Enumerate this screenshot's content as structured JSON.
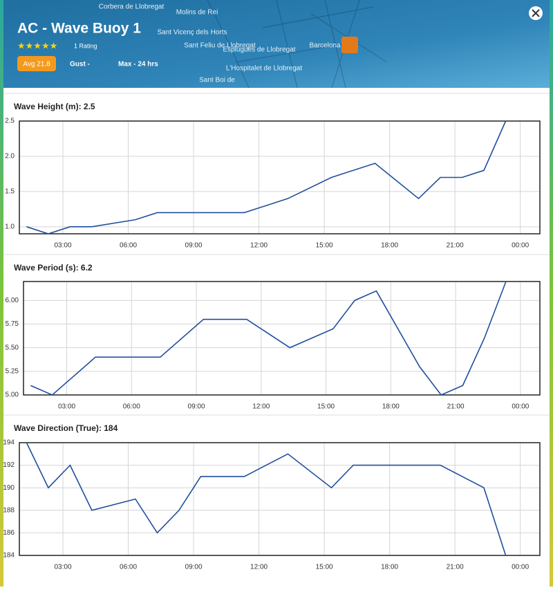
{
  "header": {
    "title": "AC - Wave Buoy 1",
    "rating": "1 Rating",
    "avg": "Avg 21.8",
    "gust": "Gust -",
    "max": "Max -  24 hrs",
    "map_labels": [
      "Corbera de Llobregat",
      "Molins de Rei",
      "Sant Vicenç dels Horts",
      "Sant Feliu de Llobregat",
      "Esplugues de Llobregat",
      "L'Hospitalet de Llobregat",
      "Sant Boi de",
      "Barcelona"
    ]
  },
  "chart_data": [
    {
      "type": "line",
      "title": "Wave Height (m): 2.5",
      "color": "#1f4e9c",
      "grid": true,
      "x": [
        1.33,
        2.33,
        3.33,
        4.33,
        6.33,
        7.33,
        11.33,
        13.33,
        15.33,
        17.33,
        19.33,
        20.33,
        21.33,
        22.33,
        23.33
      ],
      "values": [
        1.0,
        0.9,
        1.0,
        1.0,
        1.1,
        1.2,
        1.2,
        1.4,
        1.7,
        1.9,
        1.4,
        1.7,
        1.7,
        1.8,
        2.5
      ],
      "xlim": [
        1,
        24.9
      ],
      "ylim": [
        0.9,
        2.5
      ],
      "xticks": [
        {
          "value": 3,
          "label": "03:00"
        },
        {
          "value": 6,
          "label": "06:00"
        },
        {
          "value": 9,
          "label": "09:00"
        },
        {
          "value": 12,
          "label": "12:00"
        },
        {
          "value": 15,
          "label": "15:00"
        },
        {
          "value": 18,
          "label": "18:00"
        },
        {
          "value": 21,
          "label": "21:00"
        },
        {
          "value": 24,
          "label": "00:00"
        }
      ],
      "yticks": [
        {
          "value": 1,
          "label": "1.0"
        },
        1.5,
        {
          "value": 2,
          "label": "2.0"
        },
        2.5
      ]
    },
    {
      "type": "line",
      "title": "Wave Period (s): 6.2",
      "color": "#1f4e9c",
      "grid": true,
      "x": [
        1.33,
        2.33,
        4.33,
        7.33,
        9.33,
        11.33,
        13.33,
        15.33,
        16.33,
        17.33,
        19.33,
        20.33,
        21.33,
        22.33,
        23.33
      ],
      "values": [
        5.1,
        5.0,
        5.4,
        5.4,
        5.8,
        5.8,
        5.5,
        5.7,
        6.0,
        6.1,
        5.3,
        5.0,
        5.1,
        5.6,
        6.2
      ],
      "xlim": [
        1,
        24.9
      ],
      "ylim": [
        5.0,
        6.2
      ],
      "xticks": [
        {
          "value": 3,
          "label": "03:00"
        },
        {
          "value": 6,
          "label": "06:00"
        },
        {
          "value": 9,
          "label": "09:00"
        },
        {
          "value": 12,
          "label": "12:00"
        },
        {
          "value": 15,
          "label": "15:00"
        },
        {
          "value": 18,
          "label": "18:00"
        },
        {
          "value": 21,
          "label": "21:00"
        },
        {
          "value": 24,
          "label": "00:00"
        }
      ],
      "yticks": [
        {
          "value": 5,
          "label": "5.00"
        },
        {
          "value": 5.25,
          "label": "5.25"
        },
        {
          "value": 5.5,
          "label": "5.50"
        },
        {
          "value": 5.75,
          "label": "5.75"
        },
        {
          "value": 6,
          "label": "6.00"
        }
      ]
    },
    {
      "type": "line",
      "title": "Wave Direction (True): 184",
      "color": "#1f4e9c",
      "grid": true,
      "x": [
        1.33,
        2.33,
        3.33,
        4.33,
        6.33,
        7.33,
        8.33,
        9.33,
        11.33,
        13.33,
        15.33,
        16.33,
        20.33,
        22.33,
        23.33
      ],
      "values": [
        194,
        190,
        192,
        188,
        189,
        186,
        188,
        191,
        191,
        193,
        190,
        192,
        192,
        190,
        184
      ],
      "xlim": [
        1,
        24.9
      ],
      "ylim": [
        184,
        194
      ],
      "xticks": [
        {
          "value": 3,
          "label": "03:00"
        },
        {
          "value": 6,
          "label": "06:00"
        },
        {
          "value": 9,
          "label": "09:00"
        },
        {
          "value": 12,
          "label": "12:00"
        },
        {
          "value": 15,
          "label": "15:00"
        },
        {
          "value": 18,
          "label": "18:00"
        },
        {
          "value": 21,
          "label": "21:00"
        },
        {
          "value": 24,
          "label": "00:00"
        }
      ],
      "yticks": [
        184,
        186,
        188,
        190,
        192,
        194
      ]
    }
  ]
}
